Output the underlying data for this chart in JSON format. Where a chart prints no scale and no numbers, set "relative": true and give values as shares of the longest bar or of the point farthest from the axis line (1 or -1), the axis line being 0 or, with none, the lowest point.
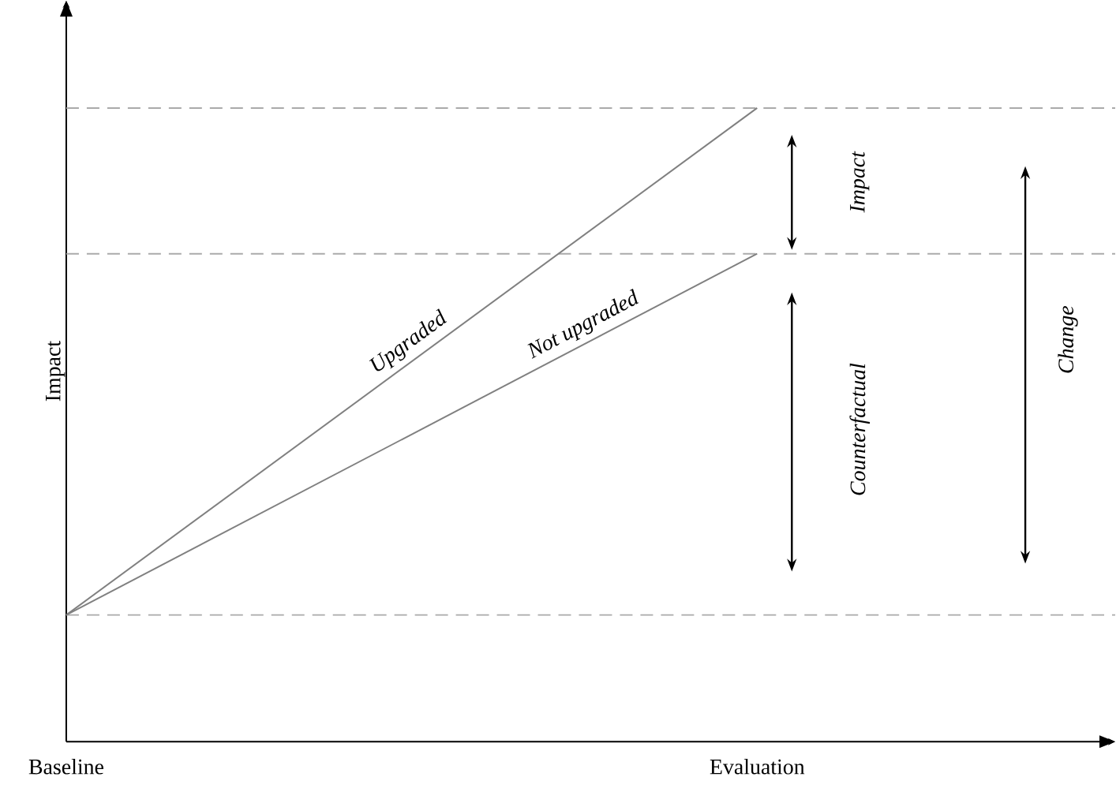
{
  "chart_data": {
    "type": "line",
    "relative": true,
    "xlabel": null,
    "ylabel": "Impact",
    "categories": [
      "Baseline",
      "Evaluation"
    ],
    "series": [
      {
        "name": "Upgraded",
        "color": "#808080",
        "values": [
          0.2,
          1
        ]
      },
      {
        "name": "Not upgraded",
        "color": "#808080",
        "values": [
          0.2,
          0.77
        ]
      }
    ],
    "ref_lines": [
      {
        "axis": "y",
        "value": 1,
        "color": "#aaaaaa",
        "line_style": "dashed"
      },
      {
        "axis": "y",
        "value": 0.77,
        "color": "#aaaaaa",
        "line_style": "dashed"
      },
      {
        "axis": "y",
        "value": 0.2,
        "color": "#aaaaaa",
        "line_style": "dashed"
      }
    ],
    "annotations": [
      "Impact",
      "Counterfactual",
      "Change"
    ],
    "grid": false,
    "marker": "none",
    "line_style": "solid"
  }
}
